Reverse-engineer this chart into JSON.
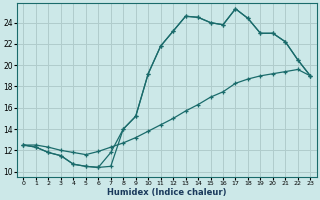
{
  "xlabel": "Humidex (Indice chaleur)",
  "bg_color": "#cce8e8",
  "grid_color": "#b0cccc",
  "line_color": "#1a6b6b",
  "xlim": [
    -0.5,
    23.5
  ],
  "ylim": [
    9.5,
    25.8
  ],
  "xticks": [
    0,
    1,
    2,
    3,
    4,
    5,
    6,
    7,
    8,
    9,
    10,
    11,
    12,
    13,
    14,
    15,
    16,
    17,
    18,
    19,
    20,
    21,
    22,
    23
  ],
  "yticks": [
    10,
    12,
    14,
    16,
    18,
    20,
    22,
    24
  ],
  "line1_x": [
    0,
    1,
    2,
    3,
    4,
    5,
    6,
    7,
    8,
    9,
    10,
    11,
    12,
    13,
    14,
    15,
    16,
    17,
    18,
    19,
    20,
    21,
    22,
    23
  ],
  "line1_y": [
    12.5,
    12.3,
    11.8,
    11.5,
    10.7,
    10.5,
    10.4,
    10.5,
    14.0,
    15.2,
    19.2,
    21.8,
    23.2,
    24.6,
    24.5,
    24.0,
    23.8,
    25.3,
    24.4,
    23.0,
    23.0,
    22.2,
    20.5,
    19.0
  ],
  "line2_x": [
    0,
    1,
    2,
    3,
    4,
    5,
    6,
    7,
    8,
    9,
    10,
    11,
    12,
    13,
    14,
    15,
    16,
    17,
    18,
    19,
    20,
    21,
    22,
    23
  ],
  "line2_y": [
    12.5,
    12.3,
    11.8,
    11.5,
    10.7,
    10.5,
    10.4,
    11.8,
    14.0,
    15.2,
    19.2,
    21.8,
    23.2,
    24.6,
    24.5,
    24.0,
    23.8,
    25.3,
    24.4,
    23.0,
    23.0,
    22.2,
    20.5,
    19.0
  ],
  "line3_x": [
    0,
    1,
    2,
    3,
    4,
    5,
    6,
    7,
    8,
    9,
    10,
    11,
    12,
    13,
    14,
    15,
    16,
    17,
    18,
    19,
    20,
    21,
    22,
    23
  ],
  "line3_y": [
    12.5,
    12.5,
    12.3,
    12.0,
    11.8,
    11.6,
    11.9,
    12.3,
    12.7,
    13.2,
    13.8,
    14.4,
    15.0,
    15.7,
    16.3,
    17.0,
    17.5,
    18.3,
    18.7,
    19.0,
    19.2,
    19.4,
    19.6,
    19.0
  ]
}
